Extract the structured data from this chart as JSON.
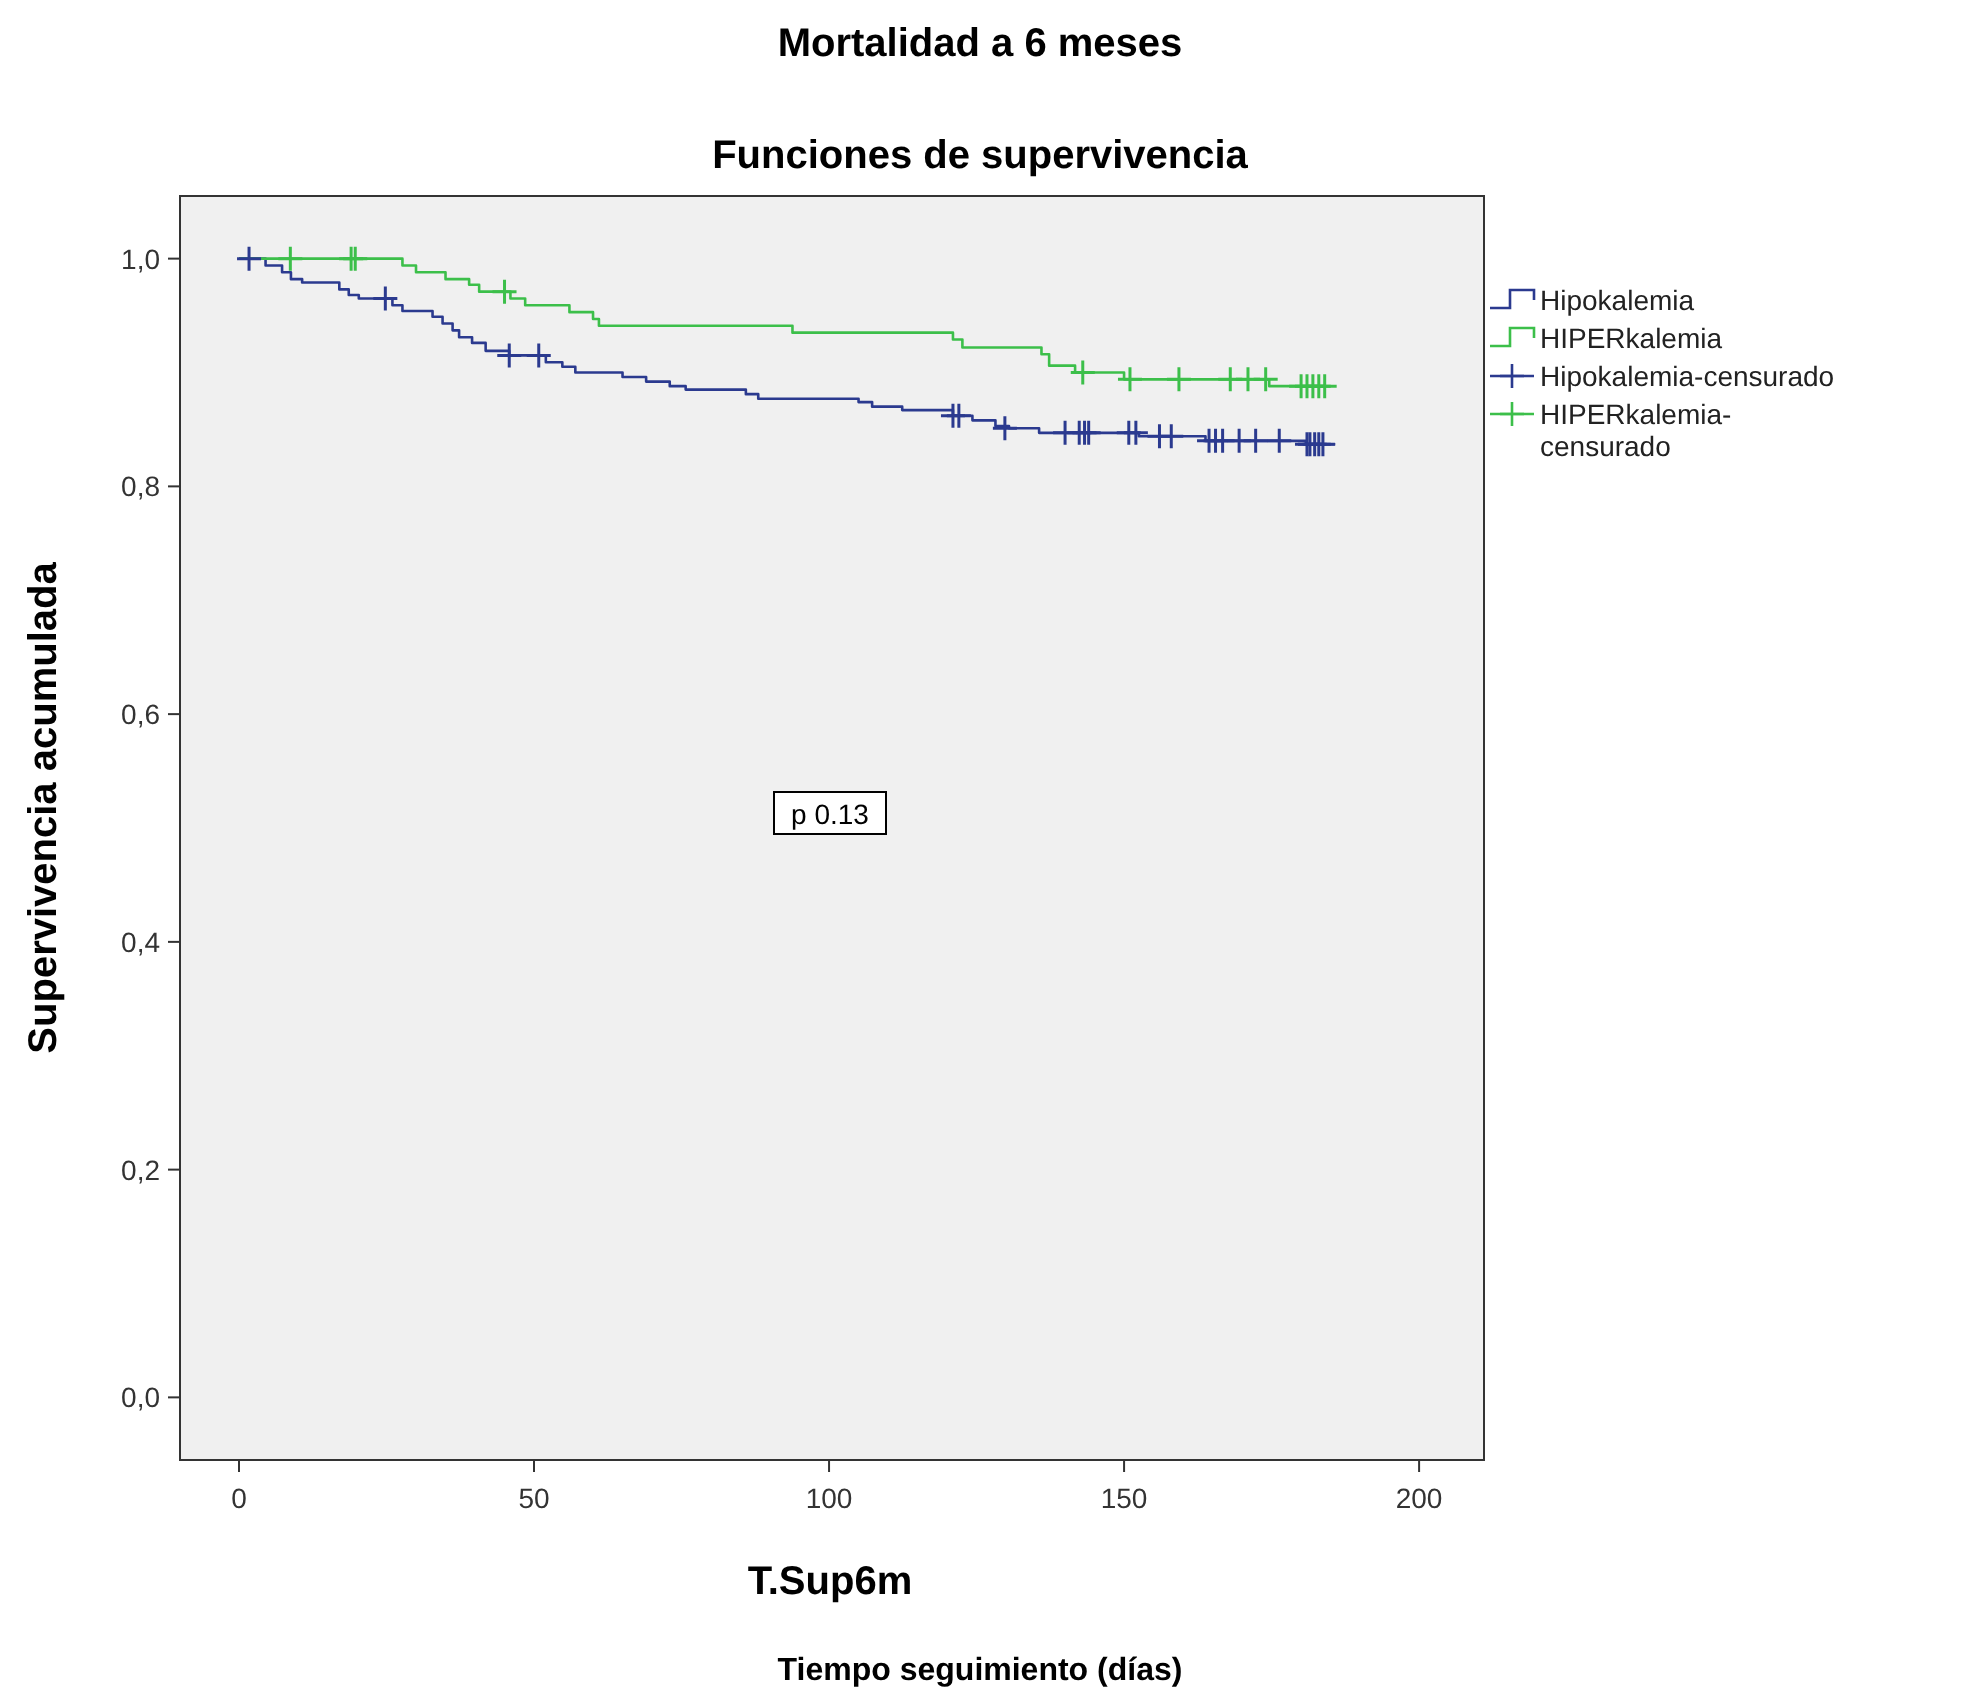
{
  "chart_data": {
    "type": "step",
    "title": "Mortalidad a 6 meses",
    "subtitle": "Funciones de supervivencia",
    "xlabel": "T.Sup6m",
    "ylabel": "Supervivencia acumulada",
    "annotations": [
      "p 0.13",
      "Tiempo seguimiento (días)"
    ],
    "xlim": [
      -10,
      211
    ],
    "xticks": [
      0,
      50,
      100,
      150,
      200
    ],
    "ylim": [
      -0.055,
      1.055
    ],
    "yticks": [
      {
        "value": 0,
        "label": "0,0"
      },
      {
        "value": 0.2,
        "label": "0,2"
      },
      {
        "value": 0.4,
        "label": "0,4"
      },
      {
        "value": 0.6,
        "label": "0,6"
      },
      {
        "value": 0.8,
        "label": "0,8"
      },
      {
        "value": 1,
        "label": "1,0"
      }
    ],
    "grid": false,
    "legend": "right",
    "series": [
      {
        "name": "Hipokalemia",
        "color": "#2b3a8f",
        "x": [
          0,
          4.5,
          7.3,
          8.8,
          10.7,
          17,
          18.6,
          20.3,
          26,
          27.7,
          32.8,
          34.5,
          36.2,
          37.3,
          39.5,
          41.8,
          45.8,
          52,
          54.8,
          57,
          65,
          69,
          73,
          75.7,
          85.9,
          88,
          105,
          107.3,
          112.4,
          121,
          124.3,
          128.2,
          130.5,
          135.6,
          152.5,
          163.8,
          180.8,
          185.8
        ],
        "values": [
          1,
          0.994,
          0.988,
          0.982,
          0.979,
          0.973,
          0.968,
          0.965,
          0.959,
          0.954,
          0.949,
          0.943,
          0.937,
          0.931,
          0.926,
          0.919,
          0.915,
          0.909,
          0.905,
          0.9,
          0.896,
          0.892,
          0.888,
          0.885,
          0.881,
          0.877,
          0.874,
          0.87,
          0.867,
          0.862,
          0.858,
          0.853,
          0.851,
          0.847,
          0.844,
          0.84,
          0.837,
          0.837
        ]
      },
      {
        "name": "HIPERkalemia",
        "color": "#3cbf4a",
        "x": [
          0,
          27.7,
          30,
          35,
          39,
          40.7,
          46,
          48.5,
          56,
          60,
          61,
          93.8,
          121,
          122.6,
          136,
          137.3,
          141.7,
          150,
          174.6,
          184
        ],
        "values": [
          1,
          0.994,
          0.988,
          0.982,
          0.977,
          0.971,
          0.965,
          0.959,
          0.953,
          0.947,
          0.941,
          0.935,
          0.929,
          0.922,
          0.916,
          0.906,
          0.9,
          0.894,
          0.888,
          0.888
        ]
      },
      {
        "name": "Hipokalemia-censurado",
        "type": "scatter",
        "marker": "cross",
        "color": "#2b3a8f",
        "x": [
          1.7,
          24.8,
          45.8,
          50.8,
          121,
          122,
          129.8,
          140,
          142.4,
          143.3,
          144,
          150.8,
          152,
          156,
          158,
          164.4,
          165.5,
          166.7,
          169.5,
          172.3,
          176.3,
          181,
          181.5,
          182.3,
          183,
          183.7
        ],
        "values": [
          1,
          0.965,
          0.915,
          0.915,
          0.862,
          0.862,
          0.851,
          0.847,
          0.847,
          0.847,
          0.847,
          0.847,
          0.847,
          0.844,
          0.844,
          0.84,
          0.84,
          0.84,
          0.84,
          0.84,
          0.84,
          0.837,
          0.837,
          0.837,
          0.837,
          0.837
        ]
      },
      {
        "name": "HIPERkalemia-censurado",
        "type": "scatter",
        "marker": "cross",
        "color": "#3cbf4a",
        "x": [
          8.7,
          19,
          19.7,
          45,
          143,
          151,
          159.3,
          168,
          171,
          174,
          180,
          181,
          182,
          183,
          184
        ],
        "values": [
          1,
          1,
          1,
          0.971,
          0.9,
          0.894,
          0.894,
          0.894,
          0.894,
          0.894,
          0.888,
          0.888,
          0.888,
          0.888,
          0.888
        ]
      }
    ]
  }
}
